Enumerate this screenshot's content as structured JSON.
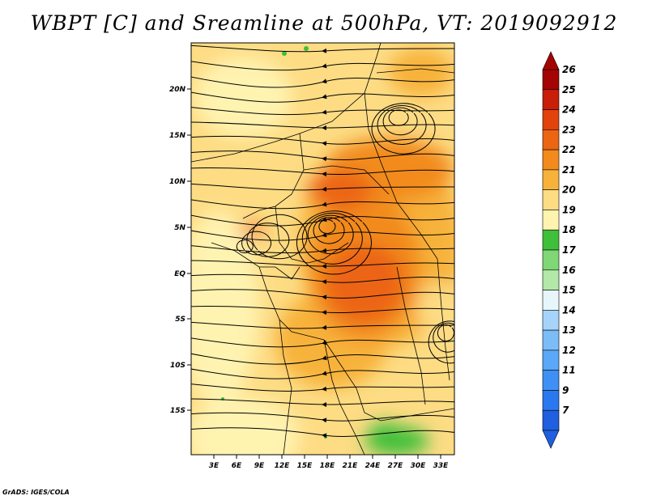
{
  "title": "WBPT [C] and Sreamline at 500hPa, VT: 2019092912",
  "credit": "GrADS: IGES/COLA",
  "map": {
    "lon_labels": [
      "3E",
      "6E",
      "9E",
      "12E",
      "15E",
      "18E",
      "21E",
      "24E",
      "27E",
      "30E",
      "33E"
    ],
    "lat_labels": [
      "20N",
      "15N",
      "10N",
      "5N",
      "EQ",
      "5S",
      "10S",
      "15S"
    ]
  },
  "colorbar": {
    "labels": [
      "7",
      "9",
      "11",
      "12",
      "13",
      "14",
      "15",
      "16",
      "17",
      "18",
      "19",
      "20",
      "21",
      "22",
      "23",
      "24",
      "25",
      "26"
    ],
    "colors": [
      "#1f5fe0",
      "#2a78ef",
      "#3e90f5",
      "#5aa8f7",
      "#7cbdf8",
      "#a6d3f9",
      "#e6f6fb",
      "#b2e8a8",
      "#7fd776",
      "#3fbf3a",
      "#fff3b0",
      "#fddc84",
      "#f7b23b",
      "#f28b1c",
      "#ec6512",
      "#e2420c",
      "#c91e08",
      "#a40404"
    ]
  }
}
